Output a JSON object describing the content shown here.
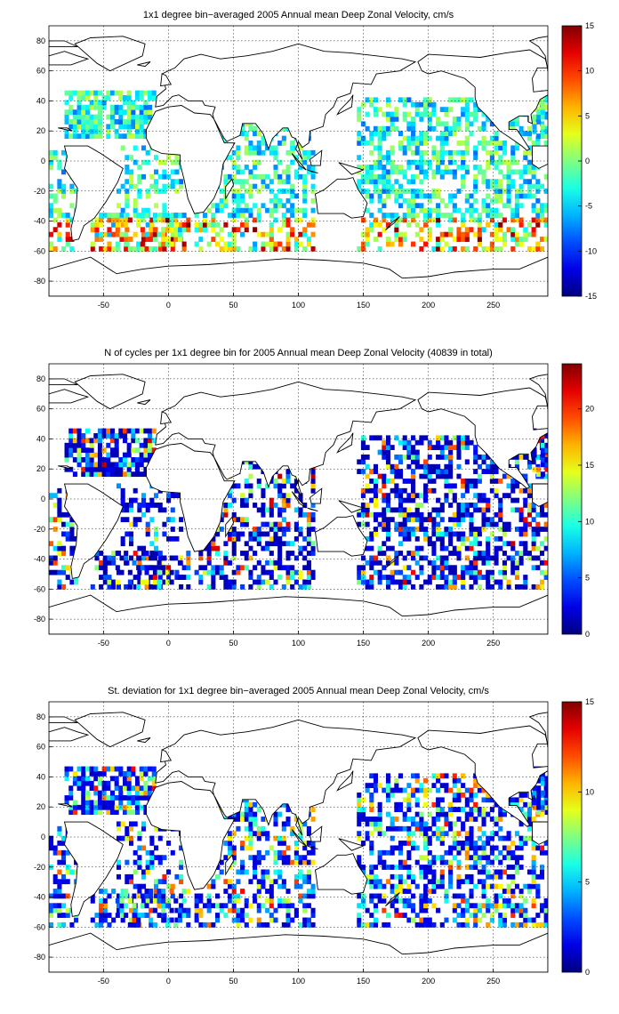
{
  "chart_data": [
    {
      "type": "heatmap",
      "title": "1x1 degree bin−averaged 2005 Annual mean Deep Zonal Velocity, cm/s",
      "xlim": [
        -92,
        292
      ],
      "ylim": [
        -90,
        90
      ],
      "xticks": [
        "-50",
        "0",
        "50",
        "100",
        "150",
        "200",
        "250"
      ],
      "yticks": [
        "80",
        "60",
        "40",
        "20",
        "0",
        "-20",
        "-40",
        "-60",
        "-80"
      ],
      "colorbar": {
        "range": [
          -15,
          15
        ],
        "ticks": [
          "15",
          "10",
          "5",
          "0",
          "-5",
          "-10",
          "-15"
        ]
      },
      "grid": true
    },
    {
      "type": "heatmap",
      "title": "N of cycles per 1x1 degree bin for 2005 Annual mean Deep Zonal Velocity (40839 in total)",
      "xlim": [
        -92,
        292
      ],
      "ylim": [
        -90,
        90
      ],
      "xticks": [
        "-50",
        "0",
        "50",
        "100",
        "150",
        "200",
        "250"
      ],
      "yticks": [
        "80",
        "60",
        "40",
        "20",
        "0",
        "-20",
        "-40",
        "-60",
        "-80"
      ],
      "colorbar": {
        "range": [
          0,
          24
        ],
        "ticks": [
          "20",
          "15",
          "10",
          "5",
          "0"
        ]
      },
      "grid": true
    },
    {
      "type": "heatmap",
      "title": "St. deviation for 1x1 degree bin−averaged 2005 Annual mean Deep Zonal Velocity, cm/s",
      "xlim": [
        -92,
        292
      ],
      "ylim": [
        -90,
        90
      ],
      "xticks": [
        "-50",
        "0",
        "50",
        "100",
        "150",
        "200",
        "250"
      ],
      "yticks": [
        "80",
        "60",
        "40",
        "20",
        "0",
        "-20",
        "-40",
        "-60",
        "-80"
      ],
      "colorbar": {
        "range": [
          0,
          15
        ],
        "ticks": [
          "15",
          "10",
          "5",
          "0"
        ]
      },
      "grid": true
    }
  ]
}
